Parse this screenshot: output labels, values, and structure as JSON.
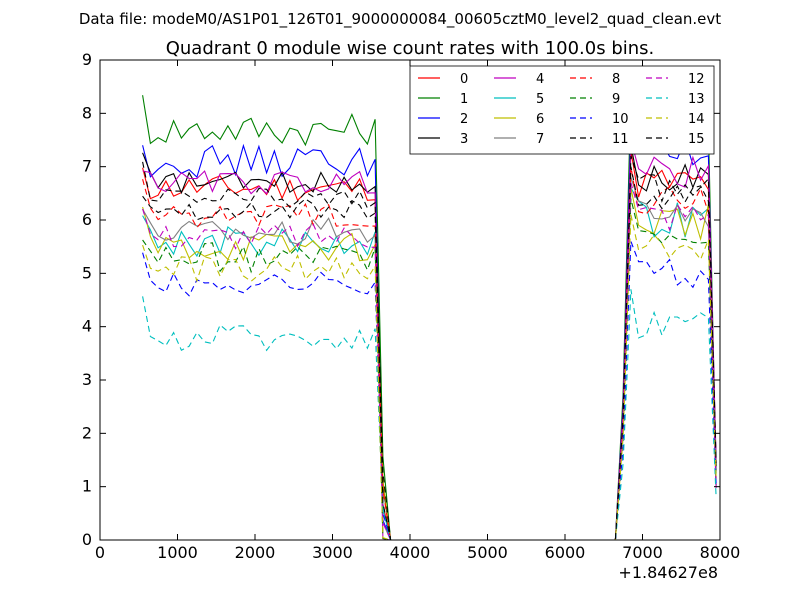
{
  "figure": {
    "suptitle": "Data file: modeM0/AS1P01_126T01_9000000084_00605cztM0_level2_quad_clean.evt"
  },
  "chart_data": {
    "type": "line",
    "title": "Quadrant 0 module wise count rates with 100.0s bins.",
    "xlabel": "",
    "ylabel": "",
    "x_offset_label": "+1.84627e8",
    "xlim": [
      0,
      8000
    ],
    "ylim": [
      0,
      9
    ],
    "xticks": [
      0,
      1000,
      2000,
      3000,
      4000,
      5000,
      6000,
      7000,
      8000
    ],
    "yticks": [
      0,
      1,
      2,
      3,
      4,
      5,
      6,
      7,
      8,
      9
    ],
    "grid": false,
    "legend_position": "top-right",
    "legend_columns": 4,
    "series": [
      {
        "name": "0",
        "color": "#ff0000",
        "dash": "solid",
        "level": 6.6,
        "noise": 0.25,
        "late_level": 6.7
      },
      {
        "name": "1",
        "color": "#008000",
        "dash": "solid",
        "level": 7.7,
        "noise": 0.3,
        "late_level": 7.8
      },
      {
        "name": "2",
        "color": "#0000ff",
        "dash": "solid",
        "level": 7.1,
        "noise": 0.3,
        "late_level": 7.2
      },
      {
        "name": "3",
        "color": "#000000",
        "dash": "solid",
        "level": 6.7,
        "noise": 0.2,
        "late_level": 6.8
      },
      {
        "name": "4",
        "color": "#bf00bf",
        "dash": "solid",
        "level": 6.7,
        "noise": 0.22,
        "late_level": 6.9
      },
      {
        "name": "5",
        "color": "#00bfbf",
        "dash": "solid",
        "level": 5.6,
        "noise": 0.28,
        "late_level": 6.0
      },
      {
        "name": "6",
        "color": "#bfbf00",
        "dash": "solid",
        "level": 5.5,
        "noise": 0.28,
        "late_level": 6.0
      },
      {
        "name": "7",
        "color": "#808080",
        "dash": "solid",
        "level": 5.8,
        "noise": 0.25,
        "late_level": 6.2
      },
      {
        "name": "8",
        "color": "#ff0000",
        "dash": "dashed",
        "level": 6.1,
        "noise": 0.25,
        "late_level": 6.4
      },
      {
        "name": "9",
        "color": "#008000",
        "dash": "dashed",
        "level": 5.3,
        "noise": 0.28,
        "late_level": 5.8
      },
      {
        "name": "10",
        "color": "#0000ff",
        "dash": "dashed",
        "level": 4.8,
        "noise": 0.22,
        "late_level": 5.0
      },
      {
        "name": "11",
        "color": "#000000",
        "dash": "dashed",
        "level": 6.2,
        "noise": 0.2,
        "late_level": 6.4
      },
      {
        "name": "12",
        "color": "#bf00bf",
        "dash": "dashed",
        "level": 5.7,
        "noise": 0.25,
        "late_level": 6.1
      },
      {
        "name": "13",
        "color": "#00bfbf",
        "dash": "dashed",
        "level": 3.8,
        "noise": 0.25,
        "late_level": 4.1
      },
      {
        "name": "14",
        "color": "#bfbf00",
        "dash": "dashed",
        "level": 5.1,
        "noise": 0.25,
        "late_level": 5.5
      },
      {
        "name": "15",
        "color": "#000000",
        "dash": "dashed",
        "level": 6.4,
        "noise": 0.22,
        "late_level": 6.6
      }
    ],
    "segments": [
      {
        "x_start": 500,
        "x_end": 3550
      },
      {
        "x_start": 3650,
        "x_end": 3750,
        "zero": true
      },
      {
        "x_start": 3750,
        "x_end": 6650,
        "zero": true
      },
      {
        "x_start": 6800,
        "x_end": 7850
      }
    ]
  }
}
